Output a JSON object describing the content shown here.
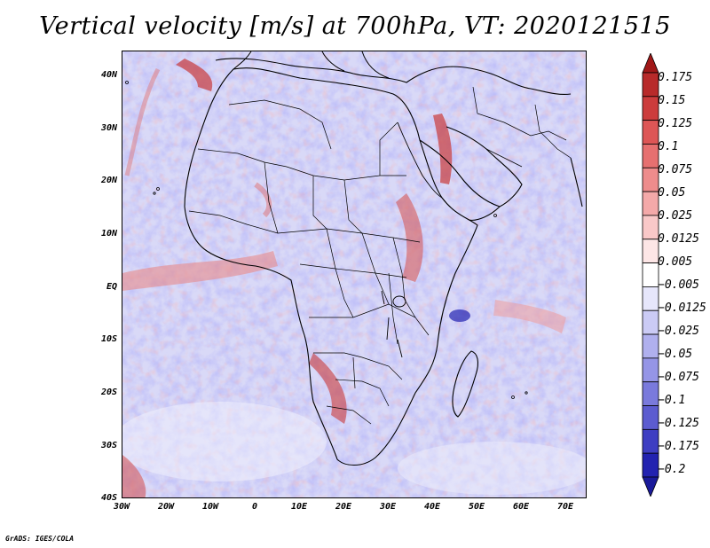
{
  "title": "Vertical velocity [m/s] at 700hPa, VT: 2020121515",
  "y_ticks": [
    "40N",
    "30N",
    "20N",
    "10N",
    "EQ",
    "10S",
    "20S",
    "30S",
    "40S"
  ],
  "x_ticks": [
    "30W",
    "20W",
    "10W",
    "0",
    "10E",
    "20E",
    "30E",
    "40E",
    "50E",
    "60E",
    "70E"
  ],
  "colorbar": {
    "labels": [
      "0.175",
      "0.15",
      "0.125",
      "0.1",
      "0.075",
      "0.05",
      "0.025",
      "0.0125",
      "0.005",
      "−0.005",
      "−0.0125",
      "−0.025",
      "−0.05",
      "−0.075",
      "−0.1",
      "−0.125",
      "−0.175",
      "−0.2"
    ],
    "colors": [
      "#a01818",
      "#b82a2a",
      "#cc3c3c",
      "#dd5656",
      "#e67070",
      "#ee8c8c",
      "#f4a9a9",
      "#f9c8c8",
      "#fde6e6",
      "#ffffff",
      "#e6e6fb",
      "#cbcbf5",
      "#b0b0ee",
      "#9595e6",
      "#7a7adc",
      "#5c5cd0",
      "#3e3ec2",
      "#2222b0",
      "#1a1a9a"
    ]
  },
  "footer": "GrADS: IGES/COLA"
}
